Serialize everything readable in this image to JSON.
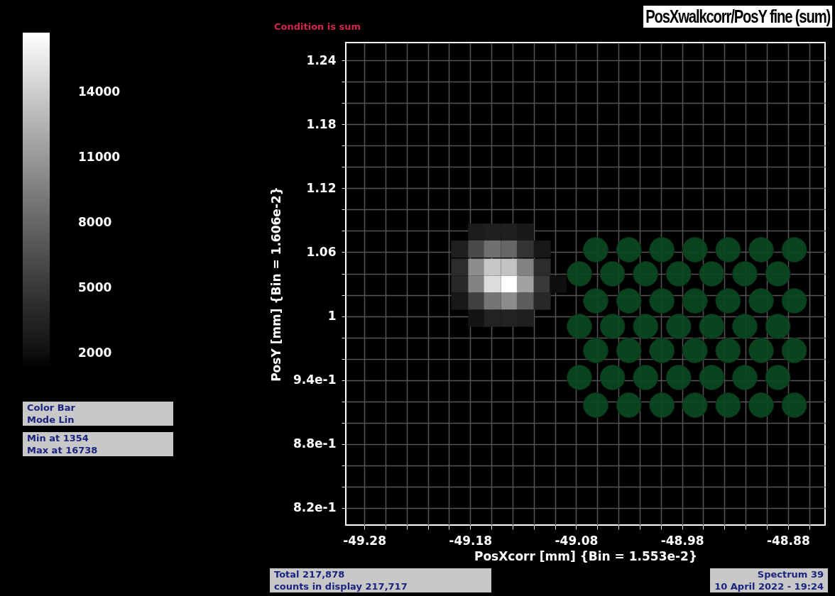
{
  "chart_data": {
    "type": "heatmap",
    "title": "PosXwalkcorr/PosY fine (sum)",
    "subtitle": "Condition is sum",
    "xlabel": "PosXcorr [mm] {Bin = 1.553e-2}",
    "ylabel": "PosY [mm] {Bin = 1.606e-2}",
    "x": [
      -49.19,
      -49.174,
      -49.159,
      -49.143,
      -49.128,
      -49.112,
      -49.097
    ],
    "y": [
      1.079,
      1.063,
      1.046,
      1.03,
      1.014,
      0.998
    ],
    "cells": [
      [
        null,
        2900,
        3200,
        3200,
        2600,
        null,
        null
      ],
      [
        3200,
        6200,
        8600,
        8000,
        4700,
        2600,
        null
      ],
      [
        4100,
        10400,
        13700,
        13400,
        9800,
        4100,
        null
      ],
      [
        3800,
        9800,
        14900,
        16738,
        11600,
        5000,
        2000
      ],
      [
        2600,
        5600,
        8900,
        10400,
        7400,
        3800,
        null
      ],
      [
        null,
        2300,
        3500,
        3500,
        3200,
        null,
        null
      ]
    ],
    "clim": [
      1354,
      16738
    ],
    "cticks": [
      2000,
      5000,
      8000,
      11000,
      14000
    ],
    "xlim": [
      -49.2975,
      -48.845
    ],
    "xticks": [
      -49.28,
      {
        "value": -49.26,
        "label": null
      },
      {
        "value": -49.24,
        "label": null
      },
      {
        "value": -49.22,
        "label": null
      },
      {
        "value": -49.2,
        "label": null
      },
      -49.18,
      {
        "value": -49.16,
        "label": null
      },
      {
        "value": -49.14,
        "label": null
      },
      {
        "value": -49.12,
        "label": null
      },
      {
        "value": -49.1,
        "label": null
      },
      -49.08,
      {
        "value": -49.06,
        "label": null
      },
      {
        "value": -49.04,
        "label": null
      },
      {
        "value": -49.02,
        "label": null
      },
      {
        "value": -49,
        "label": null
      },
      -48.98,
      {
        "value": -48.96,
        "label": null
      },
      {
        "value": -48.94,
        "label": null
      },
      {
        "value": -48.92,
        "label": null
      },
      {
        "value": -48.9,
        "label": null
      },
      -48.88,
      {
        "value": -48.86,
        "label": null
      }
    ],
    "ylim": [
      0.804,
      1.2567
    ],
    "yticks": [
      1.24,
      {
        "value": 1.22,
        "label": null
      },
      {
        "value": 1.2,
        "label": null
      },
      1.18,
      {
        "value": 1.16,
        "label": null
      },
      {
        "value": 1.14,
        "label": null
      },
      1.12,
      {
        "value": 1.1,
        "label": null
      },
      {
        "value": 1.08,
        "label": null
      },
      1.06,
      {
        "value": 1.04,
        "label": null
      },
      {
        "value": 1.02,
        "label": null
      },
      1,
      {
        "value": 0.98,
        "label": null
      },
      {
        "value": 0.96,
        "label": null
      },
      {
        "value": 0.94,
        "label": "9.4e-1"
      },
      {
        "value": 0.92,
        "label": null
      },
      {
        "value": 0.9,
        "label": null
      },
      {
        "value": 0.88,
        "label": "8.8e-1"
      },
      {
        "value": 0.86,
        "label": null
      },
      {
        "value": 0.84,
        "label": null
      },
      {
        "value": 0.82,
        "label": "8.2e-1"
      }
    ],
    "grid": true,
    "annotations": [
      "Color Bar\nMode Lin",
      "Min at 1354\nMax at 16738",
      "Total 217,878\ncounts in display 217,717",
      "Spectrum 39\n10 April 2022 - 19:24"
    ]
  }
}
